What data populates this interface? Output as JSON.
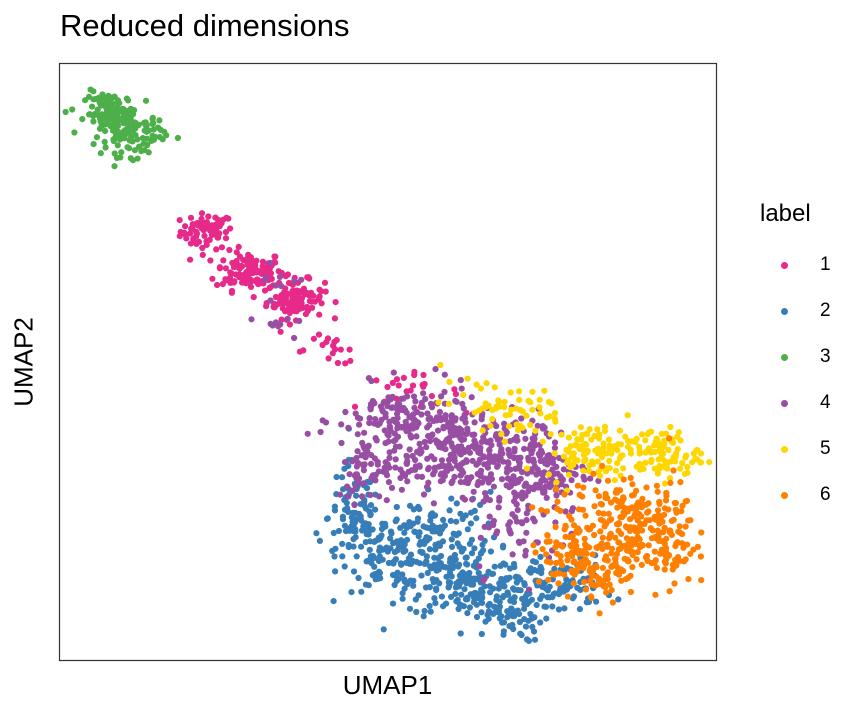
{
  "chart_data": {
    "type": "scatter",
    "title": "Reduced dimensions",
    "xlabel": "UMAP1",
    "ylabel": "UMAP2",
    "xlim": [
      0,
      100
    ],
    "ylim": [
      0,
      100
    ],
    "grid": false,
    "axis_ticks": false,
    "legend_title": "label",
    "legend_position": "right",
    "series": [
      {
        "name": "1",
        "color": "#e7298a",
        "clusters": [
          {
            "cx": 22.5,
            "cy": 71.8,
            "sx": 2.0,
            "sy": 1.5,
            "n": 70
          },
          {
            "cx": 29.0,
            "cy": 65.2,
            "sx": 2.6,
            "sy": 1.6,
            "n": 120
          },
          {
            "cx": 36.0,
            "cy": 60.4,
            "sx": 2.2,
            "sy": 1.6,
            "n": 100
          },
          {
            "cx": 41.5,
            "cy": 52.0,
            "sx": 3.0,
            "sy": 1.3,
            "n": 18
          },
          {
            "cx": 53.0,
            "cy": 45.0,
            "sx": 4.0,
            "sy": 1.4,
            "n": 24
          }
        ]
      },
      {
        "name": "2",
        "color": "#377eb8",
        "clusters": [
          {
            "cx": 45.0,
            "cy": 24.0,
            "sx": 2.0,
            "sy": 4.5,
            "n": 90
          },
          {
            "cx": 52.0,
            "cy": 18.0,
            "sx": 4.5,
            "sy": 3.2,
            "n": 150
          },
          {
            "cx": 62.0,
            "cy": 13.0,
            "sx": 4.5,
            "sy": 3.0,
            "n": 160
          },
          {
            "cx": 68.0,
            "cy": 8.0,
            "sx": 3.0,
            "sy": 2.5,
            "n": 80
          },
          {
            "cx": 76.0,
            "cy": 12.5,
            "sx": 4.0,
            "sy": 2.5,
            "n": 90
          },
          {
            "cx": 59.0,
            "cy": 22.0,
            "sx": 4.0,
            "sy": 3.0,
            "n": 70
          }
        ]
      },
      {
        "name": "3",
        "color": "#4daf4a",
        "clusters": [
          {
            "cx": 8.0,
            "cy": 91.5,
            "sx": 2.0,
            "sy": 1.8,
            "n": 120
          },
          {
            "cx": 11.5,
            "cy": 88.0,
            "sx": 2.4,
            "sy": 1.8,
            "n": 90
          }
        ]
      },
      {
        "name": "4",
        "color": "#984ea3",
        "clusters": [
          {
            "cx": 53.0,
            "cy": 40.0,
            "sx": 5.0,
            "sy": 3.0,
            "n": 150
          },
          {
            "cx": 61.0,
            "cy": 35.0,
            "sx": 6.0,
            "sy": 3.5,
            "n": 260
          },
          {
            "cx": 72.0,
            "cy": 31.5,
            "sx": 4.5,
            "sy": 3.5,
            "n": 160
          },
          {
            "cx": 70.5,
            "cy": 22.0,
            "sx": 3.5,
            "sy": 4.0,
            "n": 50
          },
          {
            "cx": 48.0,
            "cy": 32.0,
            "sx": 3.0,
            "sy": 2.8,
            "n": 60
          },
          {
            "cx": 34.0,
            "cy": 64.0,
            "sx": 2.0,
            "sy": 2.0,
            "n": 8
          },
          {
            "cx": 33.0,
            "cy": 56.5,
            "sx": 1.6,
            "sy": 1.5,
            "n": 10
          }
        ]
      },
      {
        "name": "5",
        "color": "#ffd700",
        "clusters": [
          {
            "cx": 70.0,
            "cy": 42.0,
            "sx": 3.5,
            "sy": 2.0,
            "n": 40
          },
          {
            "cx": 81.0,
            "cy": 35.0,
            "sx": 3.5,
            "sy": 2.2,
            "n": 100
          },
          {
            "cx": 91.5,
            "cy": 34.5,
            "sx": 3.0,
            "sy": 2.2,
            "n": 90
          },
          {
            "cx": 64.0,
            "cy": 43.0,
            "sx": 3.0,
            "sy": 1.8,
            "n": 20
          }
        ]
      },
      {
        "name": "6",
        "color": "#ff7f00",
        "clusters": [
          {
            "cx": 85.0,
            "cy": 23.0,
            "sx": 3.5,
            "sy": 4.5,
            "n": 140
          },
          {
            "cx": 92.0,
            "cy": 21.0,
            "sx": 2.4,
            "sy": 4.5,
            "n": 110
          },
          {
            "cx": 82.0,
            "cy": 15.5,
            "sx": 3.0,
            "sy": 2.5,
            "n": 90
          },
          {
            "cx": 77.0,
            "cy": 20.0,
            "sx": 2.5,
            "sy": 4.0,
            "n": 60
          }
        ]
      }
    ]
  }
}
